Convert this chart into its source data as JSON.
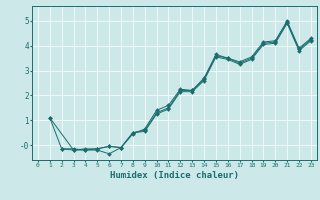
{
  "xlabel": "Humidex (Indice chaleur)",
  "ylabel": "",
  "xlim": [
    -0.5,
    23.5
  ],
  "ylim": [
    -0.6,
    5.6
  ],
  "yticks": [
    0,
    1,
    2,
    3,
    4,
    5
  ],
  "ytick_labels": [
    "-0",
    "1",
    "2",
    "3",
    "4",
    "5"
  ],
  "xticks": [
    0,
    1,
    2,
    3,
    4,
    5,
    6,
    7,
    8,
    9,
    10,
    11,
    12,
    13,
    14,
    15,
    16,
    17,
    18,
    19,
    20,
    21,
    22,
    23
  ],
  "bg_color": "#cce8e8",
  "line_color": "#1a6e6e",
  "grid_color": "#ffffff",
  "line1_x": [
    1,
    2,
    3,
    4,
    5,
    6,
    7,
    8,
    9,
    10,
    11,
    12,
    13,
    14,
    15,
    16,
    17,
    18,
    19,
    20,
    21,
    22,
    23
  ],
  "line1_y": [
    1.1,
    -0.15,
    -0.15,
    -0.2,
    -0.15,
    -0.05,
    -0.1,
    0.5,
    0.6,
    1.3,
    1.5,
    2.2,
    2.2,
    2.65,
    3.6,
    3.5,
    3.3,
    3.5,
    4.1,
    4.15,
    4.95,
    3.85,
    4.25
  ],
  "line2_x": [
    1,
    3,
    4,
    5,
    6,
    7,
    8,
    9,
    10,
    11,
    12,
    13,
    14,
    15,
    16,
    17,
    18,
    19,
    20,
    21,
    22,
    23
  ],
  "line2_y": [
    1.1,
    -0.2,
    -0.2,
    -0.2,
    -0.35,
    -0.1,
    0.45,
    0.65,
    1.4,
    1.6,
    2.25,
    2.2,
    2.7,
    3.65,
    3.5,
    3.35,
    3.55,
    4.15,
    4.2,
    5.0,
    3.9,
    4.3
  ],
  "line3_x": [
    2,
    3,
    4,
    5,
    6,
    7,
    8,
    9,
    10,
    11,
    12,
    13,
    14,
    15,
    16,
    17,
    18,
    19,
    20,
    21,
    22,
    23
  ],
  "line3_y": [
    -0.15,
    -0.2,
    -0.15,
    -0.15,
    -0.05,
    -0.1,
    0.5,
    0.55,
    1.25,
    1.45,
    2.15,
    2.15,
    2.6,
    3.55,
    3.45,
    3.25,
    3.45,
    4.05,
    4.1,
    4.9,
    3.8,
    4.2
  ]
}
